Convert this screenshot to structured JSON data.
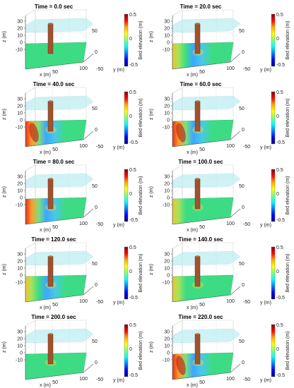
{
  "figure": {
    "panels": [
      {
        "title": "Time = 0.0 sec",
        "scour": 0.0
      },
      {
        "title": "Time = 20.0 sec",
        "scour": 0.35
      },
      {
        "title": "Time = 40.0 sec",
        "scour": 1.0
      },
      {
        "title": "Time = 60.0 sec",
        "scour": 0.9
      },
      {
        "title": "Time = 80.0 sec",
        "scour": 0.55
      },
      {
        "title": "Time = 100.0 sec",
        "scour": 0.3
      },
      {
        "title": "Time = 120.0 sec",
        "scour": 0.4
      },
      {
        "title": "Time = 140.0 sec",
        "scour": 0.25
      },
      {
        "title": "Time = 200.0 sec",
        "scour": 0.2
      },
      {
        "title": "Time = 220.0 sec",
        "scour": 0.95
      }
    ],
    "axes": {
      "x_label": "x (m)",
      "y_label": "y (m)",
      "z_label": "z (m)",
      "x_ticks": [
        "50",
        "100"
      ],
      "y_ticks": [
        "50",
        "0",
        "-50"
      ],
      "z_ticks": [
        "30",
        "20",
        "10",
        "0",
        "-10"
      ]
    },
    "colorbar": {
      "label": "Bed elevation (m)",
      "ticks": [
        "0.5",
        "0",
        "-0.5"
      ],
      "colors": [
        "#7f0000",
        "#ff0000",
        "#ffaa00",
        "#ffff00",
        "#7fff7f",
        "#00ffff",
        "#0080ff",
        "#0000ff",
        "#00007f"
      ]
    },
    "colors": {
      "bed": "#3ddc84",
      "water": "#bfeef2",
      "pier": "#a0522d"
    }
  }
}
